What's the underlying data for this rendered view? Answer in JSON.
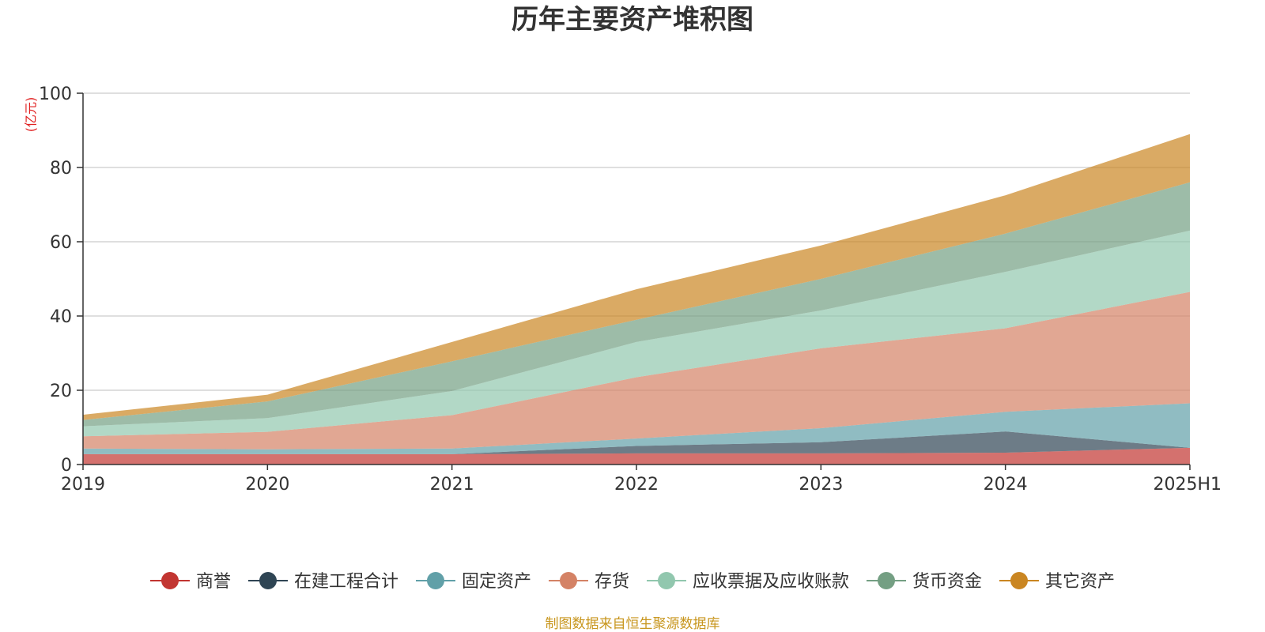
{
  "chart_data": {
    "type": "area",
    "stacked": true,
    "title": "历年主要资产堆积图",
    "unit_label": "(亿元)",
    "categories": [
      "2019",
      "2020",
      "2021",
      "2022",
      "2023",
      "2024",
      "2025H1"
    ],
    "ylim": [
      0,
      100
    ],
    "yticks": [
      0,
      20,
      40,
      60,
      80,
      100
    ],
    "grid": true,
    "legend_position": "bottom",
    "series": [
      {
        "name": "商誉",
        "color": "#c23531",
        "values": [
          2.8,
          2.8,
          2.8,
          3.0,
          3.0,
          3.2,
          4.5
        ]
      },
      {
        "name": "在建工程合计",
        "color": "#2f4554",
        "values": [
          0.0,
          0.0,
          0.0,
          2.0,
          3.0,
          5.7,
          0.0
        ]
      },
      {
        "name": "固定资产",
        "color": "#61a0a8",
        "values": [
          1.5,
          1.3,
          1.5,
          2.0,
          3.8,
          5.3,
          12.0
        ]
      },
      {
        "name": "存货",
        "color": "#d48265",
        "values": [
          3.3,
          4.7,
          9.0,
          16.5,
          21.5,
          22.5,
          30.0
        ]
      },
      {
        "name": "应收票据及应收账款",
        "color": "#91c7ae",
        "values": [
          2.7,
          3.7,
          6.5,
          9.5,
          10.2,
          15.2,
          16.5
        ]
      },
      {
        "name": "货币资金",
        "color": "#749f83",
        "values": [
          1.7,
          4.5,
          8.0,
          6.0,
          8.5,
          10.3,
          13.0
        ]
      },
      {
        "name": "其它资产",
        "color": "#ca8622",
        "values": [
          1.4,
          1.8,
          5.2,
          8.2,
          9.0,
          10.3,
          13.0
        ]
      }
    ]
  },
  "source_note": "制图数据来自恒生聚源数据库"
}
